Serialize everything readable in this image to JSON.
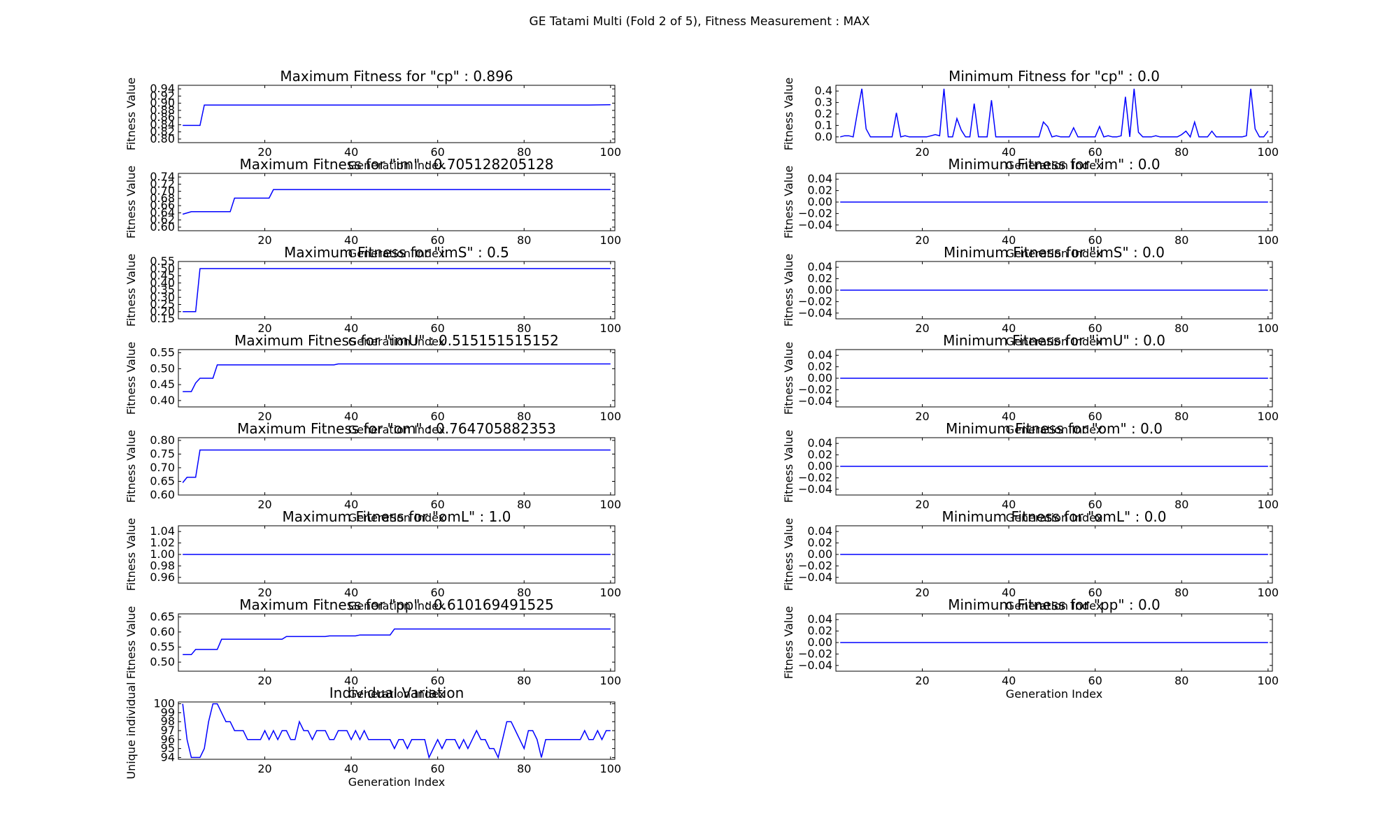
{
  "figure_title": "GE Tatami Multi (Fold 2 of 5), Fitness Measurement : MAX",
  "colors": {
    "line": "#0000ff",
    "axes": "#000000",
    "background": "#ffffff"
  },
  "chart_data": [
    {
      "type": "line",
      "id": "max-cp",
      "title": "Maximum Fitness for \"cp\" : 0.896",
      "xlabel": "Generation Index",
      "ylabel": "Fitness Value",
      "xlim": [
        0,
        101
      ],
      "ylim": [
        0.79,
        0.95
      ],
      "xticks": [
        20,
        40,
        60,
        80,
        100
      ],
      "yticks": [
        0.8,
        0.82,
        0.84,
        0.86,
        0.88,
        0.9,
        0.92,
        0.94
      ],
      "ytick_labels": [
        "0.80",
        "0.82",
        "0.84",
        "0.86",
        "0.88",
        "0.90",
        "0.92",
        "0.94"
      ],
      "series": [
        {
          "x": [
            1,
            5,
            6,
            95,
            100
          ],
          "y": [
            0.838,
            0.838,
            0.895,
            0.895,
            0.896
          ]
        }
      ]
    },
    {
      "type": "line",
      "id": "min-cp",
      "title": "Minimum Fitness for \"cp\" : 0.0",
      "xlabel": "Generation Index",
      "ylabel": "Fitness Value",
      "xlim": [
        0,
        101
      ],
      "ylim": [
        -0.05,
        0.45
      ],
      "xticks": [
        20,
        40,
        60,
        80,
        100
      ],
      "yticks": [
        0.0,
        0.1,
        0.2,
        0.3,
        0.4
      ],
      "ytick_labels": [
        "0.0",
        "0.1",
        "0.2",
        "0.3",
        "0.4"
      ],
      "series": [
        {
          "x": [
            1,
            2,
            3,
            4,
            5,
            6,
            7,
            8,
            9,
            10,
            11,
            12,
            13,
            14,
            15,
            16,
            17,
            18,
            19,
            20,
            21,
            22,
            23,
            24,
            25,
            26,
            27,
            28,
            29,
            30,
            31,
            32,
            33,
            34,
            35,
            36,
            37,
            38,
            39,
            40,
            41,
            42,
            43,
            44,
            45,
            46,
            47,
            48,
            49,
            50,
            51,
            52,
            53,
            54,
            55,
            56,
            57,
            58,
            59,
            60,
            61,
            62,
            63,
            64,
            65,
            66,
            67,
            68,
            69,
            70,
            71,
            72,
            73,
            74,
            75,
            76,
            77,
            78,
            79,
            80,
            81,
            82,
            83,
            84,
            85,
            86,
            87,
            88,
            89,
            90,
            91,
            92,
            93,
            94,
            95,
            96,
            97,
            98,
            99,
            100
          ],
          "y": [
            0.0,
            0.01,
            0.01,
            0.0,
            0.22,
            0.42,
            0.07,
            0.0,
            0.0,
            0.0,
            0.0,
            0.0,
            0.0,
            0.21,
            0.0,
            0.01,
            0.0,
            0.0,
            0.0,
            0.0,
            0.0,
            0.01,
            0.02,
            0.01,
            0.42,
            0.0,
            0.0,
            0.16,
            0.06,
            0.0,
            0.0,
            0.29,
            0.0,
            0.0,
            0.0,
            0.32,
            0.0,
            0.0,
            0.0,
            0.0,
            0.0,
            0.0,
            0.0,
            0.0,
            0.0,
            0.0,
            0.0,
            0.13,
            0.09,
            0.0,
            0.01,
            0.0,
            0.0,
            0.0,
            0.08,
            0.0,
            0.0,
            0.0,
            0.0,
            0.0,
            0.09,
            0.0,
            0.01,
            0.0,
            0.0,
            0.01,
            0.35,
            0.0,
            0.42,
            0.04,
            0.0,
            0.0,
            0.0,
            0.01,
            0.0,
            0.0,
            0.0,
            0.0,
            0.0,
            0.02,
            0.05,
            0.0,
            0.13,
            0.0,
            0.0,
            0.0,
            0.05,
            0.0,
            0.0,
            0.0,
            0.0,
            0.0,
            0.0,
            0.0,
            0.01,
            0.42,
            0.07,
            0.0,
            0.0,
            0.05
          ]
        }
      ]
    },
    {
      "type": "line",
      "id": "max-im",
      "title": "Maximum Fitness for \"im\" : 0.705128205128",
      "xlabel": "Generation Index",
      "ylabel": "Fitness Value",
      "xlim": [
        0,
        101
      ],
      "ylim": [
        0.59,
        0.75
      ],
      "xticks": [
        20,
        40,
        60,
        80,
        100
      ],
      "yticks": [
        0.6,
        0.62,
        0.64,
        0.66,
        0.68,
        0.7,
        0.72,
        0.74
      ],
      "ytick_labels": [
        "0.60",
        "0.62",
        "0.64",
        "0.66",
        "0.68",
        "0.70",
        "0.72",
        "0.74"
      ],
      "series": [
        {
          "x": [
            1,
            3,
            12,
            13,
            21,
            22,
            100
          ],
          "y": [
            0.636,
            0.643,
            0.643,
            0.681,
            0.681,
            0.705,
            0.705
          ]
        }
      ]
    },
    {
      "type": "line",
      "id": "min-im",
      "title": "Minimum Fitness for \"im\" : 0.0",
      "xlabel": "Generation Index",
      "ylabel": "Fitness Value",
      "xlim": [
        0,
        101
      ],
      "ylim": [
        -0.05,
        0.05
      ],
      "xticks": [
        20,
        40,
        60,
        80,
        100
      ],
      "yticks": [
        -0.04,
        -0.02,
        0.0,
        0.02,
        0.04
      ],
      "ytick_labels": [
        "−0.04",
        "−0.02",
        "0.00",
        "0.02",
        "0.04"
      ],
      "series": [
        {
          "x": [
            1,
            100
          ],
          "y": [
            0.0,
            0.0
          ]
        }
      ]
    },
    {
      "type": "line",
      "id": "max-ims",
      "title": "Maximum Fitness for \"imS\" : 0.5",
      "xlabel": "Generation Index",
      "ylabel": "Fitness Value",
      "xlim": [
        0,
        101
      ],
      "ylim": [
        0.15,
        0.55
      ],
      "xticks": [
        20,
        40,
        60,
        80,
        100
      ],
      "yticks": [
        0.15,
        0.2,
        0.25,
        0.3,
        0.35,
        0.4,
        0.45,
        0.5,
        0.55
      ],
      "ytick_labels": [
        "0.15",
        "0.20",
        "0.25",
        "0.30",
        "0.35",
        "0.40",
        "0.45",
        "0.50",
        "0.55"
      ],
      "series": [
        {
          "x": [
            1,
            4,
            5,
            100
          ],
          "y": [
            0.2,
            0.2,
            0.5,
            0.5
          ]
        }
      ]
    },
    {
      "type": "line",
      "id": "min-ims",
      "title": "Minimum Fitness for \"imS\" : 0.0",
      "xlabel": "Generation Index",
      "ylabel": "Fitness Value",
      "xlim": [
        0,
        101
      ],
      "ylim": [
        -0.05,
        0.05
      ],
      "xticks": [
        20,
        40,
        60,
        80,
        100
      ],
      "yticks": [
        -0.04,
        -0.02,
        0.0,
        0.02,
        0.04
      ],
      "ytick_labels": [
        "−0.04",
        "−0.02",
        "0.00",
        "0.02",
        "0.04"
      ],
      "series": [
        {
          "x": [
            1,
            100
          ],
          "y": [
            0.0,
            0.0
          ]
        }
      ]
    },
    {
      "type": "line",
      "id": "max-imu",
      "title": "Maximum Fitness for \"imU\" : 0.515151515152",
      "xlabel": "Generation Index",
      "ylabel": "Fitness Value",
      "xlim": [
        0,
        101
      ],
      "ylim": [
        0.38,
        0.56
      ],
      "xticks": [
        20,
        40,
        60,
        80,
        100
      ],
      "yticks": [
        0.4,
        0.45,
        0.5,
        0.55
      ],
      "ytick_labels": [
        "0.40",
        "0.45",
        "0.50",
        "0.55"
      ],
      "series": [
        {
          "x": [
            1,
            3,
            4,
            5,
            8,
            9,
            36,
            37,
            100
          ],
          "y": [
            0.428,
            0.428,
            0.455,
            0.47,
            0.47,
            0.512,
            0.512,
            0.515,
            0.515
          ]
        }
      ]
    },
    {
      "type": "line",
      "id": "min-imu",
      "title": "Minimum Fitness for \"imU\" : 0.0",
      "xlabel": "Generation Index",
      "ylabel": "Fitness Value",
      "xlim": [
        0,
        101
      ],
      "ylim": [
        -0.05,
        0.05
      ],
      "xticks": [
        20,
        40,
        60,
        80,
        100
      ],
      "yticks": [
        -0.04,
        -0.02,
        0.0,
        0.02,
        0.04
      ],
      "ytick_labels": [
        "−0.04",
        "−0.02",
        "0.00",
        "0.02",
        "0.04"
      ],
      "series": [
        {
          "x": [
            1,
            100
          ],
          "y": [
            0.0,
            0.0
          ]
        }
      ]
    },
    {
      "type": "line",
      "id": "max-om",
      "title": "Maximum Fitness for \"om\" : 0.764705882353",
      "xlabel": "Generation Index",
      "ylabel": "Fitness Value",
      "xlim": [
        0,
        101
      ],
      "ylim": [
        0.6,
        0.81
      ],
      "xticks": [
        20,
        40,
        60,
        80,
        100
      ],
      "yticks": [
        0.6,
        0.65,
        0.7,
        0.75,
        0.8
      ],
      "ytick_labels": [
        "0.60",
        "0.65",
        "0.70",
        "0.75",
        "0.80"
      ],
      "series": [
        {
          "x": [
            1,
            2,
            4,
            5,
            100
          ],
          "y": [
            0.645,
            0.665,
            0.665,
            0.765,
            0.765
          ]
        }
      ]
    },
    {
      "type": "line",
      "id": "min-om",
      "title": "Minimum Fitness for \"om\" : 0.0",
      "xlabel": "Generation Index",
      "ylabel": "Fitness Value",
      "xlim": [
        0,
        101
      ],
      "ylim": [
        -0.05,
        0.05
      ],
      "xticks": [
        20,
        40,
        60,
        80,
        100
      ],
      "yticks": [
        -0.04,
        -0.02,
        0.0,
        0.02,
        0.04
      ],
      "ytick_labels": [
        "−0.04",
        "−0.02",
        "0.00",
        "0.02",
        "0.04"
      ],
      "series": [
        {
          "x": [
            1,
            100
          ],
          "y": [
            0.0,
            0.0
          ]
        }
      ]
    },
    {
      "type": "line",
      "id": "max-oml",
      "title": "Maximum Fitness for \"omL\" : 1.0",
      "xlabel": "Generation Index",
      "ylabel": "Fitness Value",
      "xlim": [
        0,
        101
      ],
      "ylim": [
        0.95,
        1.05
      ],
      "xticks": [
        20,
        40,
        60,
        80,
        100
      ],
      "yticks": [
        0.96,
        0.98,
        1.0,
        1.02,
        1.04
      ],
      "ytick_labels": [
        "0.96",
        "0.98",
        "1.00",
        "1.02",
        "1.04"
      ],
      "series": [
        {
          "x": [
            1,
            100
          ],
          "y": [
            1.0,
            1.0
          ]
        }
      ]
    },
    {
      "type": "line",
      "id": "min-oml",
      "title": "Minimum Fitness for \"omL\" : 0.0",
      "xlabel": "Generation Index",
      "ylabel": "Fitness Value",
      "xlim": [
        0,
        101
      ],
      "ylim": [
        -0.05,
        0.05
      ],
      "xticks": [
        20,
        40,
        60,
        80,
        100
      ],
      "yticks": [
        -0.04,
        -0.02,
        0.0,
        0.02,
        0.04
      ],
      "ytick_labels": [
        "−0.04",
        "−0.02",
        "0.00",
        "0.02",
        "0.04"
      ],
      "series": [
        {
          "x": [
            1,
            100
          ],
          "y": [
            0.0,
            0.0
          ]
        }
      ]
    },
    {
      "type": "line",
      "id": "max-pp",
      "title": "Maximum Fitness for \"pp\" : 0.610169491525",
      "xlabel": "Generation Index",
      "ylabel": "Fitness Value",
      "xlim": [
        0,
        101
      ],
      "ylim": [
        0.47,
        0.66
      ],
      "xticks": [
        20,
        40,
        60,
        80,
        100
      ],
      "yticks": [
        0.5,
        0.55,
        0.6,
        0.65
      ],
      "ytick_labels": [
        "0.50",
        "0.55",
        "0.60",
        "0.65"
      ],
      "series": [
        {
          "x": [
            1,
            3,
            4,
            9,
            10,
            24,
            25,
            34,
            35,
            41,
            42,
            49,
            50,
            100
          ],
          "y": [
            0.525,
            0.525,
            0.542,
            0.542,
            0.576,
            0.576,
            0.585,
            0.585,
            0.587,
            0.587,
            0.59,
            0.59,
            0.61,
            0.61
          ]
        }
      ]
    },
    {
      "type": "line",
      "id": "min-pp",
      "title": "Minimum Fitness for \"pp\" : 0.0",
      "xlabel": "Generation Index",
      "ylabel": "Fitness Value",
      "xlim": [
        0,
        101
      ],
      "ylim": [
        -0.05,
        0.05
      ],
      "xticks": [
        20,
        40,
        60,
        80,
        100
      ],
      "yticks": [
        -0.04,
        -0.02,
        0.0,
        0.02,
        0.04
      ],
      "ytick_labels": [
        "−0.04",
        "−0.02",
        "0.00",
        "0.02",
        "0.04"
      ],
      "series": [
        {
          "x": [
            1,
            100
          ],
          "y": [
            0.0,
            0.0
          ]
        }
      ]
    },
    {
      "type": "line",
      "id": "variation",
      "title": "Individual Variation",
      "xlabel": "Generation Index",
      "ylabel": "Unique individual",
      "xlim": [
        0,
        101
      ],
      "ylim": [
        93.8,
        100.2
      ],
      "xticks": [
        20,
        40,
        60,
        80,
        100
      ],
      "yticks": [
        94,
        95,
        96,
        97,
        98,
        99,
        100
      ],
      "ytick_labels": [
        "94",
        "95",
        "96",
        "97",
        "98",
        "99",
        "100"
      ],
      "series": [
        {
          "x": [
            1,
            2,
            3,
            4,
            5,
            6,
            7,
            8,
            9,
            10,
            11,
            12,
            13,
            14,
            15,
            16,
            17,
            18,
            19,
            20,
            21,
            22,
            23,
            24,
            25,
            26,
            27,
            28,
            29,
            30,
            31,
            32,
            33,
            34,
            35,
            36,
            37,
            38,
            39,
            40,
            41,
            42,
            43,
            44,
            45,
            46,
            47,
            48,
            49,
            50,
            51,
            52,
            53,
            54,
            55,
            56,
            57,
            58,
            59,
            60,
            61,
            62,
            63,
            64,
            65,
            66,
            67,
            68,
            69,
            70,
            71,
            72,
            73,
            74,
            75,
            76,
            77,
            78,
            79,
            80,
            81,
            82,
            83,
            84,
            85,
            86,
            87,
            88,
            89,
            90,
            91,
            92,
            93,
            94,
            95,
            96,
            97,
            98,
            99,
            100
          ],
          "y": [
            100,
            96,
            94,
            94,
            94,
            95,
            98,
            100,
            100,
            99,
            98,
            98,
            97,
            97,
            97,
            96,
            96,
            96,
            96,
            97,
            96,
            97,
            96,
            97,
            97,
            96,
            96,
            98,
            97,
            97,
            96,
            97,
            97,
            97,
            96,
            96,
            97,
            97,
            97,
            96,
            97,
            96,
            97,
            96,
            96,
            96,
            96,
            96,
            96,
            95,
            96,
            96,
            95,
            96,
            96,
            96,
            96,
            94,
            95,
            96,
            95,
            96,
            96,
            96,
            95,
            96,
            95,
            96,
            97,
            96,
            96,
            95,
            95,
            94,
            96,
            98,
            98,
            97,
            96,
            95,
            97,
            97,
            96,
            94,
            96,
            96,
            96,
            96,
            96,
            96,
            96,
            96,
            96,
            97,
            96,
            96,
            97,
            96,
            97,
            97
          ]
        }
      ]
    }
  ]
}
